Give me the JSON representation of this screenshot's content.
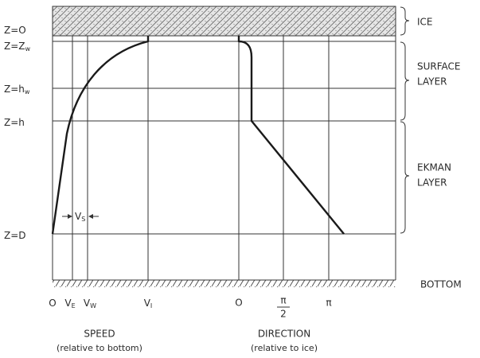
{
  "depth_labels": [
    {
      "text": "Z=O"
    },
    {
      "text": "Z=Z",
      "sub": "w"
    },
    {
      "text": "Z=h",
      "sub": "w"
    },
    {
      "text": "Z=h"
    },
    {
      "text": "Z=D"
    }
  ],
  "layer_labels": {
    "ice": "ICE",
    "surface": [
      "SURFACE",
      "LAYER"
    ],
    "ekman": [
      "EKMAN",
      "LAYER"
    ],
    "bottom": "BOTTOM"
  },
  "speed_axis": {
    "ticks": [
      {
        "text": "O"
      },
      {
        "text": "V",
        "sub": "E"
      },
      {
        "text": "V",
        "sub": "W"
      },
      {
        "text": "V",
        "sub": "I"
      }
    ],
    "title": "SPEED",
    "note": "(relative to bottom)"
  },
  "direction_axis": {
    "ticks": [
      {
        "text": "O"
      },
      {
        "num": "π",
        "den": "2"
      },
      {
        "text": "π"
      }
    ],
    "title": "DIRECTION",
    "note": "(relative to ice)"
  },
  "shear_label": {
    "text": "V",
    "sub": "S"
  }
}
